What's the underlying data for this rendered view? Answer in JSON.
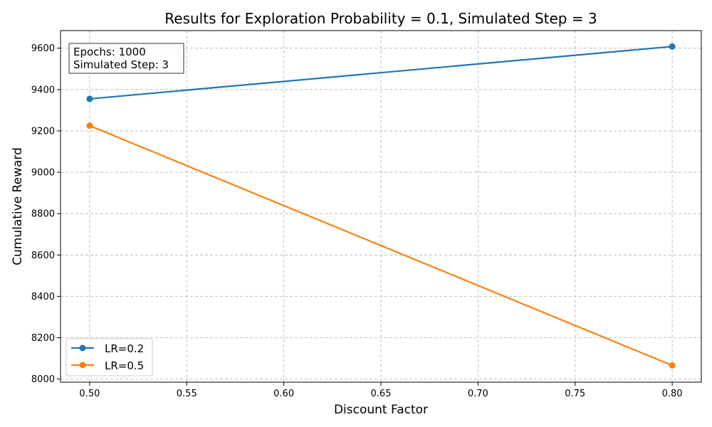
{
  "chart_data": {
    "type": "line",
    "title": "Results for Exploration Probability = 0.1, Simulated Step = 3",
    "xlabel": "Discount Factor",
    "ylabel": "Cumulative Reward",
    "xlim": [
      0.485,
      0.815
    ],
    "ylim": [
      7985,
      9685
    ],
    "xticks": [
      0.5,
      0.55,
      0.6,
      0.65,
      0.7,
      0.75,
      0.8
    ],
    "xtick_labels": [
      "0.50",
      "0.55",
      "0.60",
      "0.65",
      "0.70",
      "0.75",
      "0.80"
    ],
    "yticks": [
      8000,
      8200,
      8400,
      8600,
      8800,
      9000,
      9200,
      9400,
      9600
    ],
    "ytick_labels": [
      "8000",
      "8200",
      "8400",
      "8600",
      "8800",
      "9000",
      "9200",
      "9400",
      "9600"
    ],
    "grid": true,
    "legend_position": "lower-left",
    "series": [
      {
        "name": "LR=0.2",
        "color": "#1f77b4",
        "x": [
          0.5,
          0.8
        ],
        "y": [
          9355,
          9608
        ]
      },
      {
        "name": "LR=0.5",
        "color": "#ff7f0e",
        "x": [
          0.5,
          0.8
        ],
        "y": [
          9225,
          8066
        ]
      }
    ],
    "annotation": {
      "lines": [
        "Epochs: 1000",
        "Simulated Step: 3"
      ]
    }
  }
}
